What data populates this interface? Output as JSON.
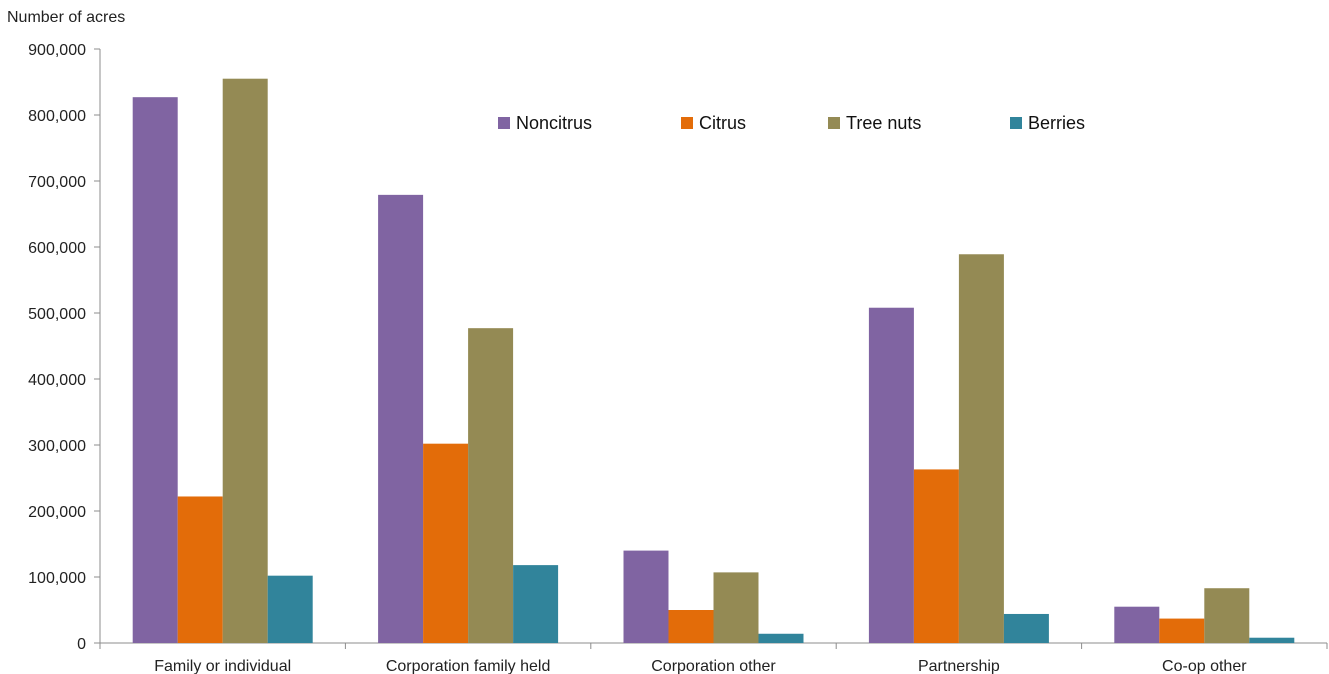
{
  "chart_data": {
    "type": "bar",
    "title": "",
    "ylabel": "Number of acres",
    "xlabel": "",
    "ylim": [
      0,
      900000
    ],
    "y_ticks": [
      0,
      100000,
      200000,
      300000,
      400000,
      500000,
      600000,
      700000,
      800000,
      900000
    ],
    "y_tick_labels": [
      "0",
      "100,000",
      "200,000",
      "300,000",
      "400,000",
      "500,000",
      "600,000",
      "700,000",
      "800,000",
      "900,000"
    ],
    "categories": [
      "Family or individual",
      "Corporation family held",
      "Corporation other",
      "Partnership",
      "Co-op other"
    ],
    "series": [
      {
        "name": "Noncitrus",
        "color": "#8064a2",
        "values": [
          827000,
          679000,
          140000,
          508000,
          55000
        ]
      },
      {
        "name": "Citrus",
        "color": "#e36c09",
        "values": [
          222000,
          302000,
          50000,
          263000,
          37000
        ]
      },
      {
        "name": "Tree nuts",
        "color": "#948a54",
        "values": [
          855000,
          477000,
          107000,
          589000,
          83000
        ]
      },
      {
        "name": "Berries",
        "color": "#31849b",
        "values": [
          102000,
          118000,
          14000,
          44000,
          8000
        ]
      }
    ],
    "legend_position": "top-center",
    "grid": false
  }
}
